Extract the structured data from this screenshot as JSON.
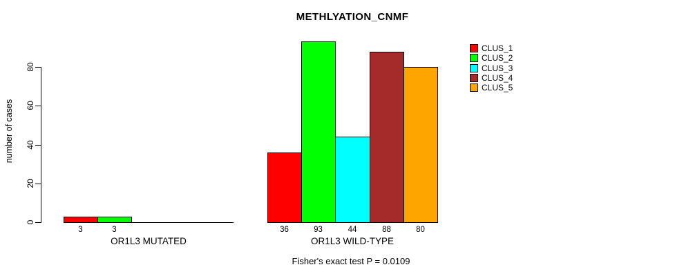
{
  "chart_data": {
    "type": "bar",
    "title": "METHLYATION_CNMF",
    "ylabel": "number of cases",
    "xlabel": "",
    "annotation": "Fisher's exact test P = 0.0109",
    "yticks": [
      0,
      20,
      40,
      60,
      80
    ],
    "ylim": [
      0,
      93
    ],
    "grid": false,
    "legend_position": "right-outside",
    "legend": [
      {
        "label": "CLUS_1",
        "color": "#FF0000"
      },
      {
        "label": "CLUS_2",
        "color": "#00FF00"
      },
      {
        "label": "CLUS_3",
        "color": "#00FFFF"
      },
      {
        "label": "CLUS_4",
        "color": "#A52A2A"
      },
      {
        "label": "CLUS_5",
        "color": "#FFA500"
      }
    ],
    "groups": [
      {
        "label": "OR1L3 MUTATED",
        "bars": [
          {
            "cluster": "CLUS_1",
            "value": 3
          },
          {
            "cluster": "CLUS_2",
            "value": 3
          }
        ]
      },
      {
        "label": "OR1L3 WILD-TYPE",
        "bars": [
          {
            "cluster": "CLUS_1",
            "value": 36
          },
          {
            "cluster": "CLUS_2",
            "value": 93
          },
          {
            "cluster": "CLUS_3",
            "value": 44
          },
          {
            "cluster": "CLUS_4",
            "value": 88
          },
          {
            "cluster": "CLUS_5",
            "value": 80
          }
        ]
      }
    ]
  }
}
